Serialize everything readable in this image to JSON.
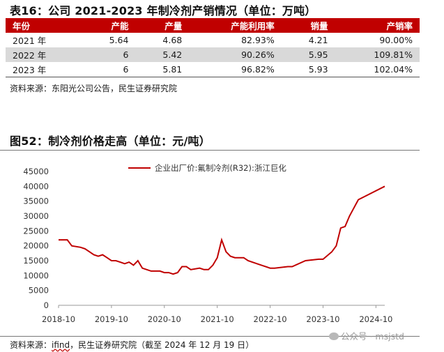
{
  "table": {
    "title": "表16：公司 2021-2023 年制冷剂产销情况（单位：万吨）",
    "headers": [
      "年份",
      "产能",
      "产量",
      "产能利用率",
      "销量",
      "产销率"
    ],
    "rows": [
      [
        "2021 年",
        "5.64",
        "4.68",
        "82.93%",
        "4.21",
        "90.00%"
      ],
      [
        "2022 年",
        "6",
        "5.42",
        "90.26%",
        "5.95",
        "109.81%"
      ],
      [
        "2023 年",
        "6",
        "5.81",
        "96.82%",
        "5.93",
        "102.04%"
      ]
    ],
    "source": "资料来源：东阳光公司公告，民生证券研究院"
  },
  "figure": {
    "title": "图52：制冷剂价格走高（单位：元/吨）",
    "source_prefix": "资料来源：",
    "source_emph": "ifind",
    "source_rest": "，民生证券研究院（截至 2024 年 12 月 19 日）"
  },
  "watermark": {
    "text": "公众号 · msjstd",
    "icon": "wechat-icon"
  },
  "chart_data": {
    "type": "line",
    "title": "",
    "xlabel": "",
    "ylabel": "",
    "legend_position": "top-center",
    "grid": false,
    "ylim": [
      0,
      45000
    ],
    "yticks": [
      0,
      5000,
      10000,
      15000,
      20000,
      25000,
      30000,
      35000,
      40000,
      45000
    ],
    "ytick_labels": [
      "0",
      "5000",
      "10000",
      "15000",
      "20000",
      "25000",
      "30000",
      "35000",
      "40000",
      "45000"
    ],
    "xlim": [
      "2018-10",
      "2024-12"
    ],
    "xticks": [
      "2018-10",
      "2019-10",
      "2020-10",
      "2021-10",
      "2022-10",
      "2023-10",
      "2024-10"
    ],
    "series": [
      {
        "name": "企业出厂价:氟制冷剂(R32):浙江巨化",
        "color": "#c00000",
        "x": [
          "2018-10",
          "2018-12",
          "2019-01",
          "2019-03",
          "2019-04",
          "2019-05",
          "2019-06",
          "2019-07",
          "2019-08",
          "2019-09",
          "2019-10",
          "2019-11",
          "2019-12",
          "2020-01",
          "2020-02",
          "2020-03",
          "2020-04",
          "2020-05",
          "2020-07",
          "2020-09",
          "2020-10",
          "2020-11",
          "2020-12",
          "2021-01",
          "2021-02",
          "2021-03",
          "2021-04",
          "2021-06",
          "2021-07",
          "2021-08",
          "2021-09",
          "2021-10",
          "2021-11",
          "2021-12",
          "2022-01",
          "2022-02",
          "2022-04",
          "2022-05",
          "2022-07",
          "2022-08",
          "2022-10",
          "2022-11",
          "2023-02",
          "2023-03",
          "2023-06",
          "2023-09",
          "2023-10",
          "2023-12",
          "2024-01",
          "2024-02",
          "2024-03",
          "2024-04",
          "2024-06",
          "2024-08",
          "2024-12"
        ],
        "y": [
          22000,
          22000,
          20000,
          19500,
          19000,
          18000,
          17000,
          16500,
          17000,
          16000,
          15000,
          15000,
          14500,
          14000,
          14500,
          13500,
          15000,
          12500,
          11500,
          11500,
          11000,
          11000,
          10500,
          11000,
          13000,
          13000,
          12000,
          12500,
          12000,
          12000,
          13500,
          16000,
          22000,
          18000,
          16500,
          16000,
          16000,
          15000,
          14000,
          13500,
          12500,
          12500,
          13000,
          13000,
          15000,
          15500,
          15500,
          18000,
          20000,
          26000,
          26500,
          30000,
          35500,
          37000,
          40000
        ]
      }
    ]
  }
}
